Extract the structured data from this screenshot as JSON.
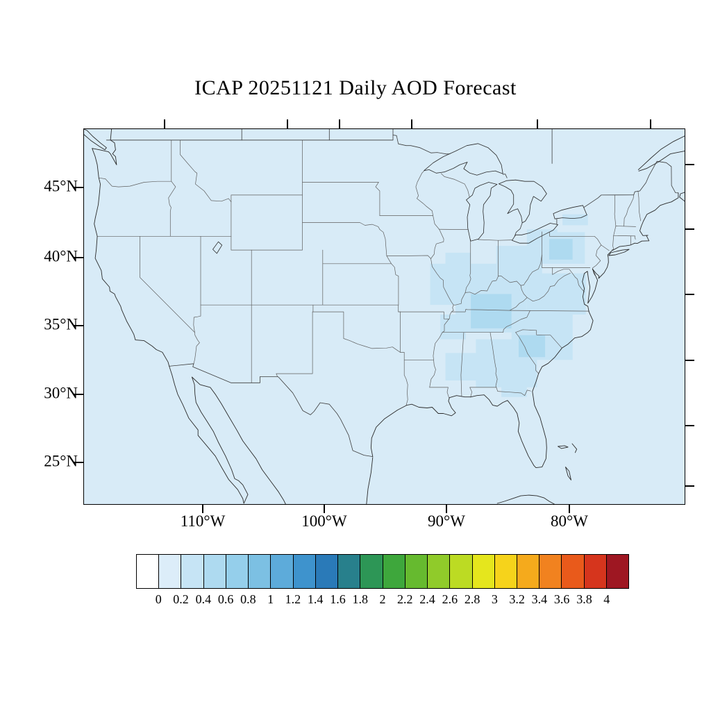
{
  "title": "ICAP 20251121 Daily AOD Forecast",
  "map": {
    "lat_labels": [
      "45°N",
      "40°N",
      "35°N",
      "30°N",
      "25°N"
    ],
    "lon_labels": [
      "110°W",
      "100°W",
      "90°W",
      "80°W"
    ],
    "background_color": "#d8ebf7",
    "aod_shade_light": "#c6e4f5",
    "aod_shade_medium": "#aedaf0"
  },
  "colorbar": {
    "tick_labels": [
      "0",
      "0.2",
      "0.4",
      "0.6",
      "0.8",
      "1",
      "1.2",
      "1.4",
      "1.6",
      "1.8",
      "2",
      "2.2",
      "2.4",
      "2.6",
      "2.8",
      "3",
      "3.2",
      "3.4",
      "3.6",
      "3.8",
      "4"
    ],
    "colors": [
      "#ffffff",
      "#dcedf9",
      "#c6e4f5",
      "#aedaf0",
      "#95cfeb",
      "#7cc0e3",
      "#5dabda",
      "#3e93cd",
      "#2a7ab8",
      "#28808c",
      "#2d9656",
      "#3ea73c",
      "#66ba2f",
      "#90cb2a",
      "#bcdb23",
      "#e5e61d",
      "#f6d31b",
      "#f5aa1c",
      "#f1821f",
      "#e95a1b",
      "#d6351d",
      "#9e1722"
    ]
  }
}
